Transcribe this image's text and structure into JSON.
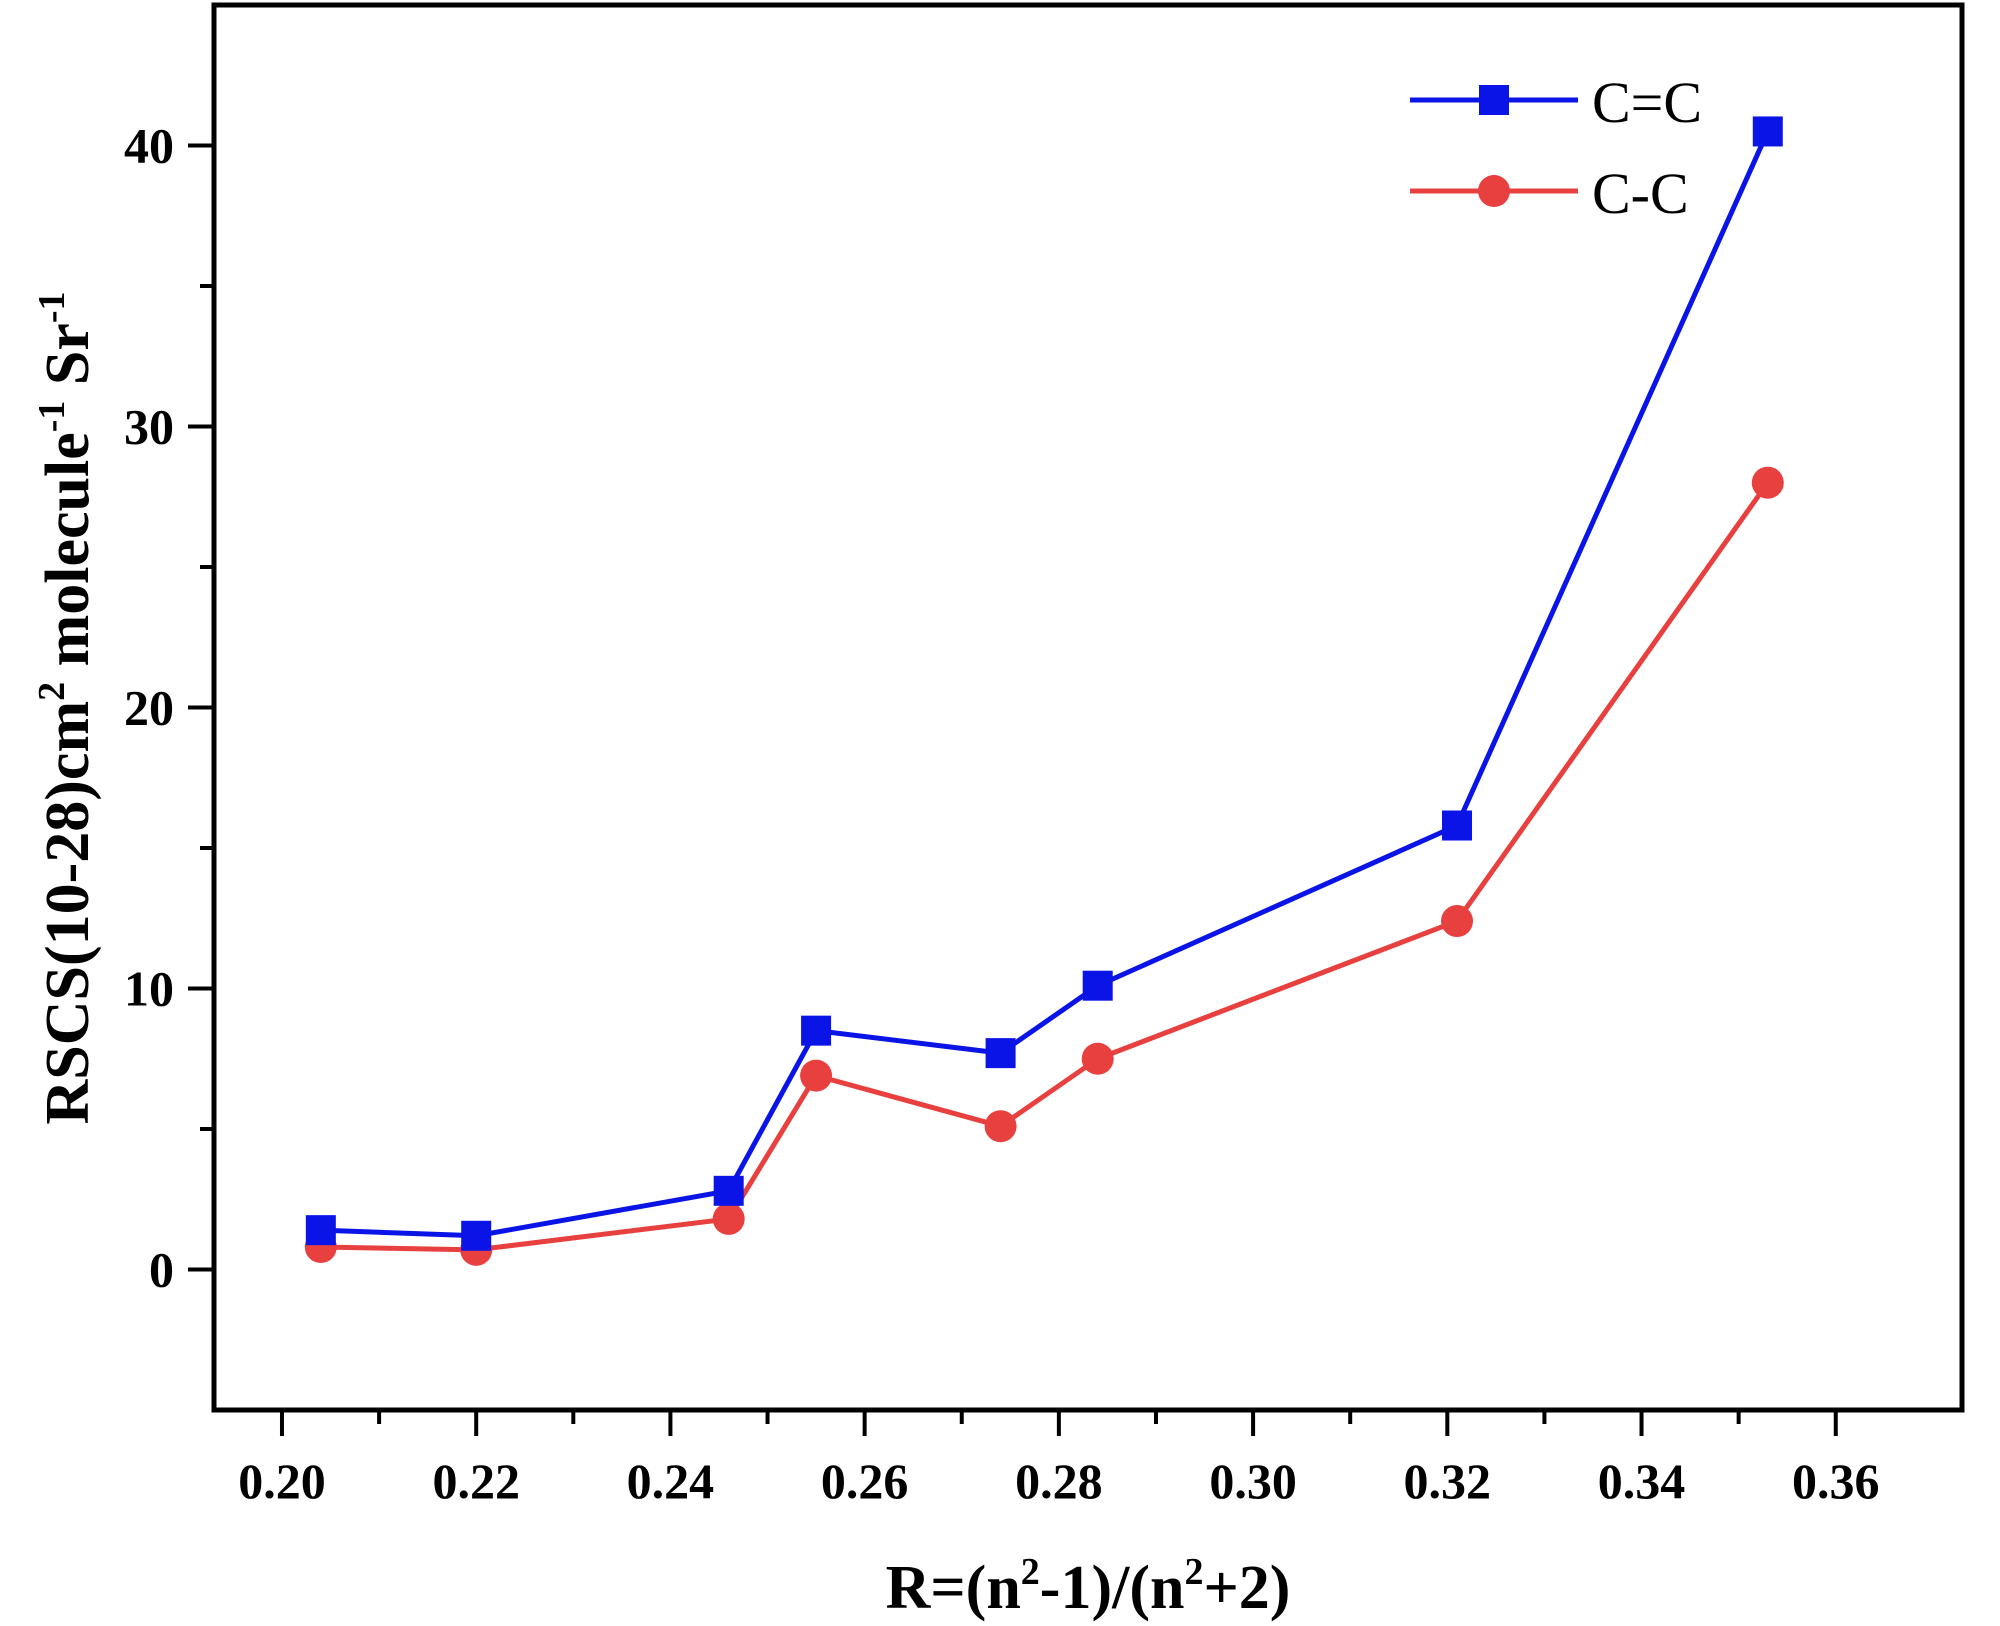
{
  "chart_data": {
    "type": "line",
    "title": "",
    "xlabel": {
      "main": "R=(n",
      "sup1": "2",
      "mid": "-1)/(n",
      "sup2": "2",
      "end": "+2)"
    },
    "ylabel": {
      "main": "RSCS(10-28)cm",
      "sup1": "2",
      "mid": " molecule",
      "sup2": "-1",
      "mid2": " Sr",
      "sup3": "-1"
    },
    "xlim": [
      0.193,
      0.373
    ],
    "ylim": [
      -5,
      45
    ],
    "xticks": [
      0.2,
      0.22,
      0.24,
      0.26,
      0.28,
      0.3,
      0.32,
      0.34,
      0.36
    ],
    "xtick_labels": [
      "0.20",
      "0.22",
      "0.24",
      "0.26",
      "0.28",
      "0.30",
      "0.32",
      "0.34",
      "0.36"
    ],
    "yticks": [
      0,
      10,
      20,
      30,
      40
    ],
    "ytick_labels": [
      "0",
      "10",
      "20",
      "30",
      "40"
    ],
    "x_minor_step": 0.01,
    "y_minor_step": 5,
    "grid": false,
    "legend_position": "top-right",
    "series": [
      {
        "name": "C=C",
        "color": "#0a14e6",
        "marker": "square",
        "x": [
          0.204,
          0.22,
          0.246,
          0.255,
          0.274,
          0.284,
          0.321,
          0.353
        ],
        "values": [
          1.4,
          1.2,
          2.8,
          8.5,
          7.7,
          10.1,
          15.8,
          40.5
        ]
      },
      {
        "name": "C-C",
        "color": "#e8403f",
        "marker": "circle",
        "x": [
          0.204,
          0.22,
          0.246,
          0.255,
          0.274,
          0.284,
          0.321,
          0.353
        ],
        "values": [
          0.8,
          0.7,
          1.8,
          6.9,
          5.1,
          7.5,
          12.4,
          28.0
        ]
      }
    ]
  }
}
